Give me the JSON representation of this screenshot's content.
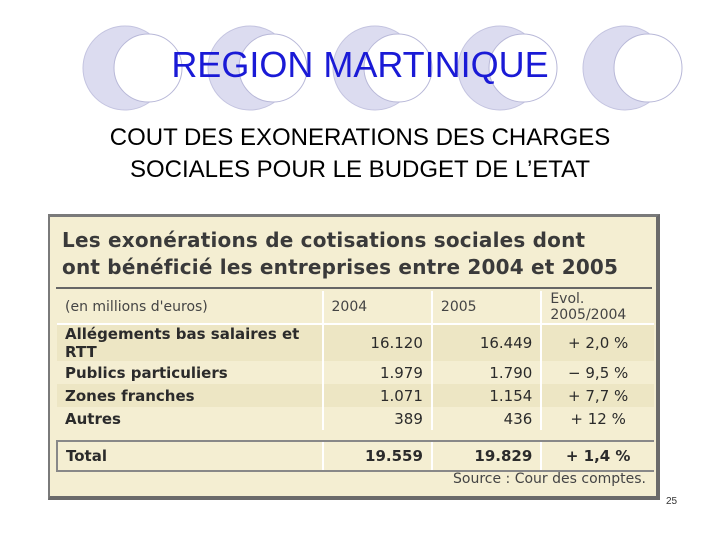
{
  "slide": {
    "title": "REGION MARTINIQUE",
    "subtitle_line1": "COUT DES EXONERATIONS DES CHARGES",
    "subtitle_line2": "SOCIALES POUR LE BUDGET DE L’ETAT",
    "page_number": "25"
  },
  "table_panel": {
    "title_line1": "Les exonérations de cotisations sociales dont",
    "title_line2": "ont bénéficié les entreprises entre 2004 et 2005",
    "headers": [
      "(en millions d'euros)",
      "2004",
      "2005",
      "Evol. 2005/2004"
    ],
    "rows": [
      [
        "Allégements bas salaires et RTT",
        "16.120",
        "16.449",
        "+ 2,0 %"
      ],
      [
        "Publics particuliers",
        "1.979",
        "1.790",
        "− 9,5 %"
      ],
      [
        "Zones franches",
        "1.071",
        "1.154",
        "+ 7,7 %"
      ],
      [
        "Autres",
        "389",
        "436",
        "+ 12 %"
      ]
    ],
    "total": [
      "Total",
      "19.559",
      "19.829",
      "+ 1,4 %"
    ],
    "source": "Source : Cour des comptes."
  },
  "colors": {
    "title": "#1a1ad6",
    "ring_fill": "#d9d9f0",
    "panel_background": "#f4eed2"
  }
}
